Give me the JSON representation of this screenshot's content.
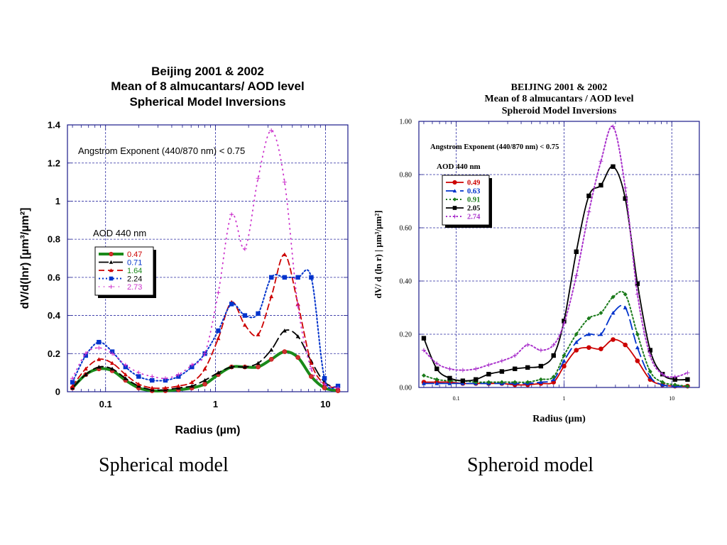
{
  "captions": [
    "Spherical model",
    "Spheroid model"
  ],
  "chart_data": [
    {
      "type": "line",
      "title_lines": [
        "Beijing  2001 & 2002",
        "Mean of 8 almucantars/ AOD level",
        "Spherical Model Inversions"
      ],
      "xlabel": "Radius (µm)",
      "ylabel": "dV/d(lnr) [µm³/µm²]",
      "x_scale": "log",
      "xlim": [
        0.045,
        16
      ],
      "ylim": [
        0,
        1.4
      ],
      "x_ticks": [
        {
          "v": 0.1,
          "label": "0.1"
        },
        {
          "v": 1,
          "label": "1"
        },
        {
          "v": 10,
          "label": "10"
        }
      ],
      "y_ticks": [
        {
          "v": 0,
          "label": "0"
        },
        {
          "v": 0.2,
          "label": "0.2"
        },
        {
          "v": 0.4,
          "label": "0.4"
        },
        {
          "v": 0.6,
          "label": "0.6"
        },
        {
          "v": 0.8,
          "label": "0.8"
        },
        {
          "v": 1,
          "label": "1"
        },
        {
          "v": 1.2,
          "label": "1.2"
        },
        {
          "v": 1.4,
          "label": "1.4"
        }
      ],
      "grid": true,
      "annotations": [
        "Angstrom Exponent (440/870 nm) < 0.75"
      ],
      "legend_title": "AOD 440 nm",
      "legend_position": "left",
      "x": [
        0.05,
        0.066,
        0.087,
        0.115,
        0.152,
        0.2,
        0.265,
        0.35,
        0.46,
        0.61,
        0.8,
        1.06,
        1.4,
        1.85,
        2.44,
        3.22,
        4.25,
        5.62,
        7.43,
        9.81,
        13.0
      ],
      "series": [
        {
          "name": "0.47",
          "color": "#1a8a1a",
          "label_color": "#cc0000",
          "style": "thick",
          "marker": "circle",
          "values": [
            0.02,
            0.09,
            0.12,
            0.11,
            0.06,
            0.02,
            0.005,
            0.005,
            0.01,
            0.02,
            0.04,
            0.09,
            0.13,
            0.13,
            0.13,
            0.17,
            0.21,
            0.18,
            0.08,
            0.02,
            0.005
          ]
        },
        {
          "name": "0.71",
          "color": "#000000",
          "label_color": "#0033cc",
          "style": "longdash",
          "marker": "triangle",
          "values": [
            0.02,
            0.09,
            0.13,
            0.12,
            0.07,
            0.03,
            0.01,
            0.01,
            0.02,
            0.03,
            0.06,
            0.1,
            0.13,
            0.13,
            0.15,
            0.22,
            0.32,
            0.29,
            0.16,
            0.05,
            0.02
          ]
        },
        {
          "name": "1.64",
          "color": "#cc0000",
          "label_color": "#1a8a1a",
          "style": "dash",
          "marker": "triangle",
          "values": [
            0.03,
            0.12,
            0.17,
            0.15,
            0.09,
            0.04,
            0.02,
            0.02,
            0.03,
            0.05,
            0.12,
            0.28,
            0.47,
            0.35,
            0.3,
            0.5,
            0.72,
            0.46,
            0.15,
            0.04,
            0.02
          ]
        },
        {
          "name": "2.24",
          "color": "#0033cc",
          "label_color": "#000000",
          "style": "dot",
          "marker": "square",
          "values": [
            0.05,
            0.19,
            0.26,
            0.21,
            0.13,
            0.08,
            0.06,
            0.06,
            0.08,
            0.13,
            0.2,
            0.32,
            0.46,
            0.4,
            0.41,
            0.6,
            0.6,
            0.6,
            0.6,
            0.07,
            0.03
          ]
        },
        {
          "name": "2.73",
          "color": "#cc33cc",
          "label_color": "#cc33cc",
          "style": "sparse",
          "marker": "plus",
          "values": [
            0.07,
            0.2,
            0.23,
            0.2,
            0.14,
            0.1,
            0.08,
            0.07,
            0.09,
            0.14,
            0.2,
            0.52,
            0.93,
            0.75,
            1.12,
            1.37,
            1.1,
            0.45,
            0.12,
            0.04,
            0.02
          ]
        }
      ]
    },
    {
      "type": "line",
      "title_lines": [
        "BEIJING    2001 & 2002",
        "Mean of 8 almucantars / AOD level",
        "Spheroid Model Inversions"
      ],
      "xlabel": "Radius (µm)",
      "ylabel": "dV/ d (ln r)  | µm³/µm²]",
      "x_scale": "log",
      "xlim": [
        0.045,
        18
      ],
      "ylim": [
        0,
        1
      ],
      "x_ticks": [
        {
          "v": 0.1,
          "label": "0.1"
        },
        {
          "v": 1,
          "label": "1"
        },
        {
          "v": 10,
          "label": "10"
        }
      ],
      "y_ticks": [
        {
          "v": 0,
          "label": "0.00"
        },
        {
          "v": 0.2,
          "label": "0.20"
        },
        {
          "v": 0.4,
          "label": "0.40"
        },
        {
          "v": 0.6,
          "label": "0.60"
        },
        {
          "v": 0.8,
          "label": "0.80"
        },
        {
          "v": 1,
          "label": "1.00"
        }
      ],
      "grid": true,
      "annotations": [
        "Angstrom Exponent (440/870 nm) < 0.75"
      ],
      "legend_title": "AOD  440 nm",
      "legend_position": "top-left",
      "x": [
        0.05,
        0.066,
        0.087,
        0.115,
        0.152,
        0.2,
        0.265,
        0.35,
        0.46,
        0.61,
        0.8,
        1.0,
        1.3,
        1.7,
        2.2,
        2.85,
        3.7,
        4.8,
        6.3,
        8.2,
        10.7,
        14.0
      ],
      "series": [
        {
          "name": "0.49",
          "color": "#cc0000",
          "label_color": "#cc0000",
          "style": "solid",
          "marker": "circle",
          "values": [
            0.02,
            0.02,
            0.02,
            0.015,
            0.015,
            0.015,
            0.015,
            0.01,
            0.01,
            0.015,
            0.02,
            0.08,
            0.14,
            0.15,
            0.145,
            0.18,
            0.16,
            0.1,
            0.03,
            0.01,
            0.005,
            0.005
          ]
        },
        {
          "name": "0.63",
          "color": "#0033cc",
          "label_color": "#0033cc",
          "style": "longdash",
          "marker": "triangle",
          "values": [
            0.015,
            0.015,
            0.015,
            0.015,
            0.015,
            0.015,
            0.015,
            0.015,
            0.015,
            0.02,
            0.03,
            0.1,
            0.17,
            0.2,
            0.2,
            0.28,
            0.3,
            0.15,
            0.04,
            0.01,
            0.005,
            0.005
          ]
        },
        {
          "name": "0.91",
          "color": "#1a7a1a",
          "label_color": "#1a7a1a",
          "style": "dot",
          "marker": "diamond",
          "values": [
            0.045,
            0.03,
            0.025,
            0.025,
            0.02,
            0.02,
            0.02,
            0.02,
            0.02,
            0.03,
            0.04,
            0.12,
            0.2,
            0.26,
            0.28,
            0.34,
            0.35,
            0.2,
            0.06,
            0.02,
            0.01,
            0.005
          ]
        },
        {
          "name": "2.05",
          "color": "#000000",
          "label_color": "#000000",
          "style": "solid",
          "marker": "square",
          "values": [
            0.185,
            0.07,
            0.035,
            0.025,
            0.03,
            0.05,
            0.06,
            0.07,
            0.075,
            0.08,
            0.12,
            0.25,
            0.51,
            0.72,
            0.76,
            0.83,
            0.71,
            0.39,
            0.14,
            0.05,
            0.03,
            0.03
          ]
        },
        {
          "name": "2.74",
          "color": "#aa33cc",
          "label_color": "#aa33cc",
          "style": "dot",
          "marker": "plus",
          "values": [
            0.14,
            0.09,
            0.07,
            0.065,
            0.07,
            0.085,
            0.1,
            0.12,
            0.16,
            0.14,
            0.16,
            0.24,
            0.42,
            0.66,
            0.85,
            0.98,
            0.75,
            0.35,
            0.12,
            0.05,
            0.04,
            0.055
          ]
        }
      ]
    }
  ]
}
